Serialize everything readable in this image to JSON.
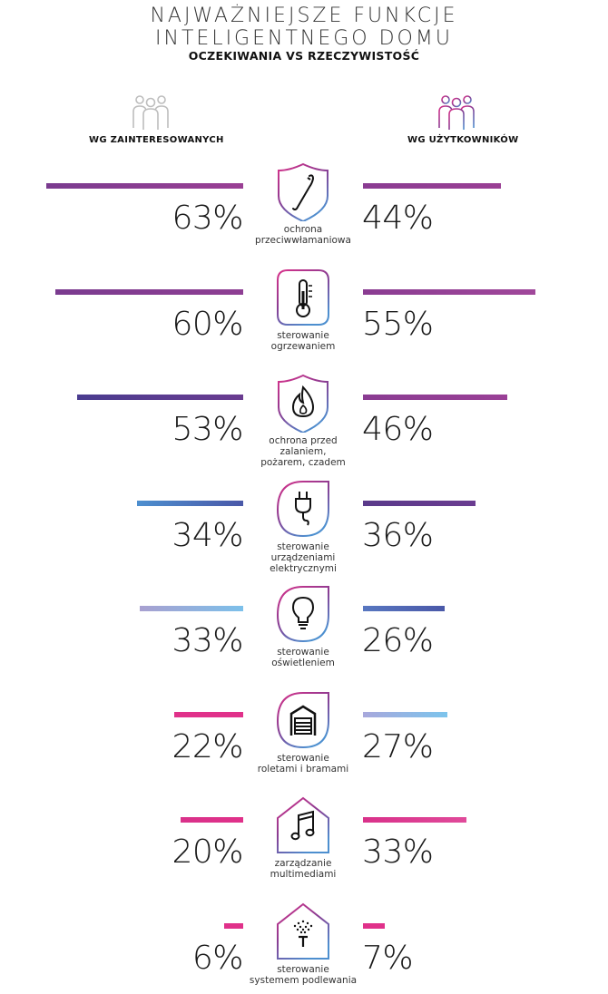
{
  "title_line1": "NAJWAŻNIEJSZE FUNKCJE",
  "title_line2": "INTELIGENTNEGO DOMU",
  "subtitle": "OCZEKIWANIA VS RZECZYWISTOŚĆ",
  "left_label": "WG ZAINTERESOWANYCH",
  "right_label": "WG UŻYTKOWNIKÓW",
  "left_people_icon": "people-group-gray-icon",
  "right_people_icon": "people-group-gradient-icon",
  "chart_data": {
    "type": "bar",
    "series": [
      {
        "name": "WG ZAINTERESOWANYCH",
        "values": [
          63,
          60,
          53,
          34,
          33,
          22,
          20,
          6
        ]
      },
      {
        "name": "WG UŻYTKOWNIKÓW",
        "values": [
          44,
          55,
          46,
          36,
          26,
          27,
          33,
          7
        ]
      }
    ],
    "categories": [
      "ochrona przeciwwłamaniowa",
      "sterowanie ogrzewaniem",
      "ochrona przed zalaniem, pożarem, czadem",
      "sterowanie urządzeniami elektrycznymi",
      "sterowanie oświetleniem",
      "sterowanie roletami i bramami",
      "zarządzanie multimediami",
      "sterowanie systemem podlewania"
    ],
    "rows": [
      {
        "label_lines": [
          "ochrona",
          "przeciwwłamaniowa"
        ],
        "left": 63,
        "right": 44,
        "left_text": "63%",
        "right_text": "44%",
        "icon": "crowbar-icon",
        "shape": "shield",
        "left_colors": [
          "#7a3b8f",
          "#9a3f94"
        ],
        "right_colors": [
          "#8a3c92",
          "#9a3f94"
        ]
      },
      {
        "label_lines": [
          "sterowanie",
          "ogrzewaniem"
        ],
        "left": 60,
        "right": 55,
        "left_text": "60%",
        "right_text": "55%",
        "icon": "thermometer-icon",
        "shape": "rounded-square",
        "left_colors": [
          "#7a3b8f",
          "#8e3e93"
        ],
        "right_colors": [
          "#8a3c92",
          "#a0479a"
        ]
      },
      {
        "label_lines": [
          "ochrona przed",
          "zalaniem,",
          "pożarem, czadem"
        ],
        "left": 53,
        "right": 46,
        "left_text": "53%",
        "right_text": "46%",
        "icon": "flame-icon",
        "shape": "shield",
        "left_colors": [
          "#4a3c8f",
          "#6a3c90"
        ],
        "right_colors": [
          "#8a3c92",
          "#9a4096"
        ]
      },
      {
        "label_lines": [
          "sterowanie",
          "urządzeniami",
          "elektrycznymi"
        ],
        "left": 34,
        "right": 36,
        "left_text": "34%",
        "right_text": "36%",
        "icon": "plug-icon",
        "shape": "drop",
        "left_colors": [
          "#4d8fcf",
          "#4a58a8"
        ],
        "right_colors": [
          "#5a3a8a",
          "#6a3c90"
        ]
      },
      {
        "label_lines": [
          "sterowanie",
          "oświetleniem"
        ],
        "left": 33,
        "right": 26,
        "left_text": "33%",
        "right_text": "26%",
        "icon": "bulb-icon",
        "shape": "drop",
        "left_colors": [
          "#a8a0d0",
          "#7cc0ea"
        ],
        "right_colors": [
          "#5877c0",
          "#4a58a8"
        ]
      },
      {
        "label_lines": [
          "sterowanie",
          "roletami i bramami"
        ],
        "left": 22,
        "right": 27,
        "left_text": "22%",
        "right_text": "27%",
        "icon": "garage-icon",
        "shape": "drop",
        "left_colors": [
          "#e0318a",
          "#e0318a"
        ],
        "right_colors": [
          "#a8a8dc",
          "#7cc4ec"
        ]
      },
      {
        "label_lines": [
          "zarządzanie",
          "multimediami"
        ],
        "left": 20,
        "right": 33,
        "left_text": "20%",
        "right_text": "33%",
        "icon": "music-note-icon",
        "shape": "house",
        "left_colors": [
          "#d9318a",
          "#e0318a"
        ],
        "right_colors": [
          "#d9318a",
          "#e04a9a"
        ]
      },
      {
        "label_lines": [
          "sterowanie",
          "systemem podlewania"
        ],
        "left": 6,
        "right": 7,
        "left_text": "6%",
        "right_text": "7%",
        "icon": "sprinkler-icon",
        "shape": "house",
        "left_colors": [
          "#e0318a",
          "#e0318a"
        ],
        "right_colors": [
          "#e0318a",
          "#e0318a"
        ]
      }
    ]
  }
}
